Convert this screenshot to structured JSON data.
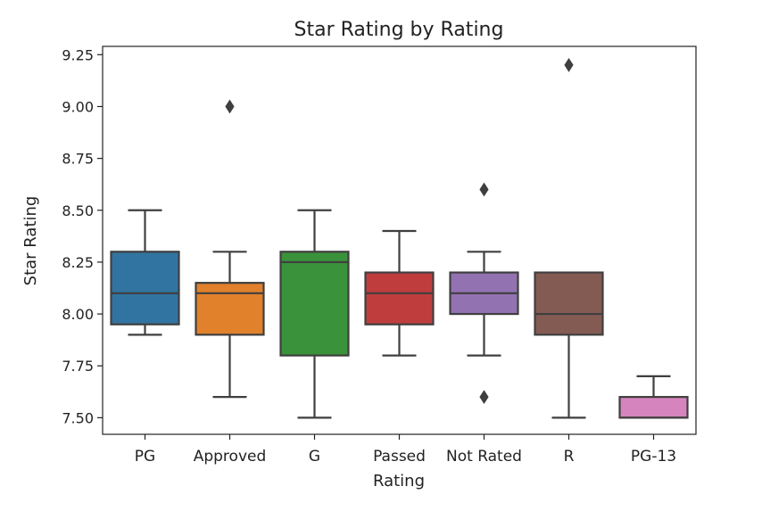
{
  "chart_data": {
    "type": "box",
    "title": "Star Rating by Rating",
    "xlabel": "Rating",
    "ylabel": "Star Rating",
    "ylim": [
      7.42,
      9.29
    ],
    "yticks": [
      7.5,
      7.75,
      8.0,
      8.25,
      8.5,
      8.75,
      9.0,
      9.25
    ],
    "ytick_labels": [
      "7.50",
      "7.75",
      "8.00",
      "8.25",
      "8.50",
      "8.75",
      "9.00",
      "9.25"
    ],
    "grid": false,
    "legend": "none",
    "categories": [
      "PG",
      "Approved",
      "G",
      "Passed",
      "Not Rated",
      "R",
      "PG-13"
    ],
    "colors": [
      "#3274a1",
      "#e1812c",
      "#3a923a",
      "#c03d3e",
      "#9372b2",
      "#845b53",
      "#d684bd"
    ],
    "boxes": [
      {
        "category": "PG",
        "whisker_low": 7.9,
        "q1": 7.95,
        "median": 8.1,
        "q3": 8.3,
        "whisker_high": 8.5,
        "outliers": []
      },
      {
        "category": "Approved",
        "whisker_low": 7.6,
        "q1": 7.9,
        "median": 8.1,
        "q3": 8.15,
        "whisker_high": 8.3,
        "outliers": [
          9.0
        ]
      },
      {
        "category": "G",
        "whisker_low": 7.5,
        "q1": 7.8,
        "median": 8.25,
        "q3": 8.3,
        "whisker_high": 8.5,
        "outliers": []
      },
      {
        "category": "Passed",
        "whisker_low": 7.8,
        "q1": 7.95,
        "median": 8.1,
        "q3": 8.2,
        "whisker_high": 8.4,
        "outliers": []
      },
      {
        "category": "Not Rated",
        "whisker_low": 7.8,
        "q1": 8.0,
        "median": 8.1,
        "q3": 8.2,
        "whisker_high": 8.3,
        "outliers": [
          8.6,
          7.6
        ]
      },
      {
        "category": "R",
        "whisker_low": 7.5,
        "q1": 7.9,
        "median": 8.0,
        "q3": 8.2,
        "whisker_high": 8.2,
        "outliers": [
          9.2
        ]
      },
      {
        "category": "PG-13",
        "whisker_low": 7.5,
        "q1": 7.5,
        "median": 7.5,
        "q3": 7.6,
        "whisker_high": 7.7,
        "outliers": []
      }
    ]
  }
}
